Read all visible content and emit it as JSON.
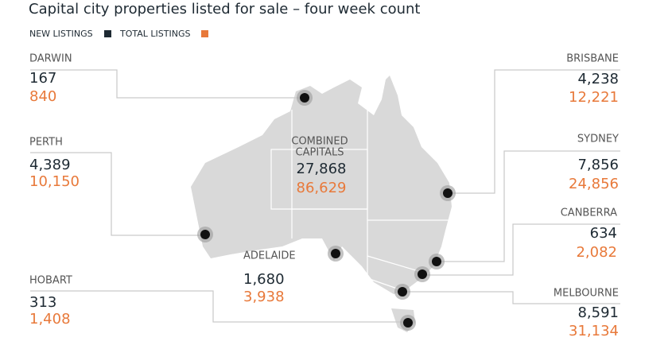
{
  "title": "Capital city properties listed for sale – four week count",
  "legend": {
    "new": "NEW LISTINGS",
    "total": "TOTAL LISTINGS"
  },
  "combined": {
    "label_line1": "COMBINED",
    "label_line2": "CAPITALS",
    "new": "27,868",
    "total": "86,629"
  },
  "cities": [
    {
      "name": "DARWIN",
      "new": "167",
      "total": "840"
    },
    {
      "name": "PERTH",
      "new": "4,389",
      "total": "10,150"
    },
    {
      "name": "HOBART",
      "new": "313",
      "total": "1,408"
    },
    {
      "name": "ADELAIDE",
      "new": "1,680",
      "total": "3,938"
    },
    {
      "name": "BRISBANE",
      "new": "4,238",
      "total": "12,221"
    },
    {
      "name": "SYDNEY",
      "new": "7,856",
      "total": "24,856"
    },
    {
      "name": "CANBERRA",
      "new": "634",
      "total": "2,082"
    },
    {
      "name": "MELBOURNE",
      "new": "8,591",
      "total": "31,134"
    }
  ]
}
